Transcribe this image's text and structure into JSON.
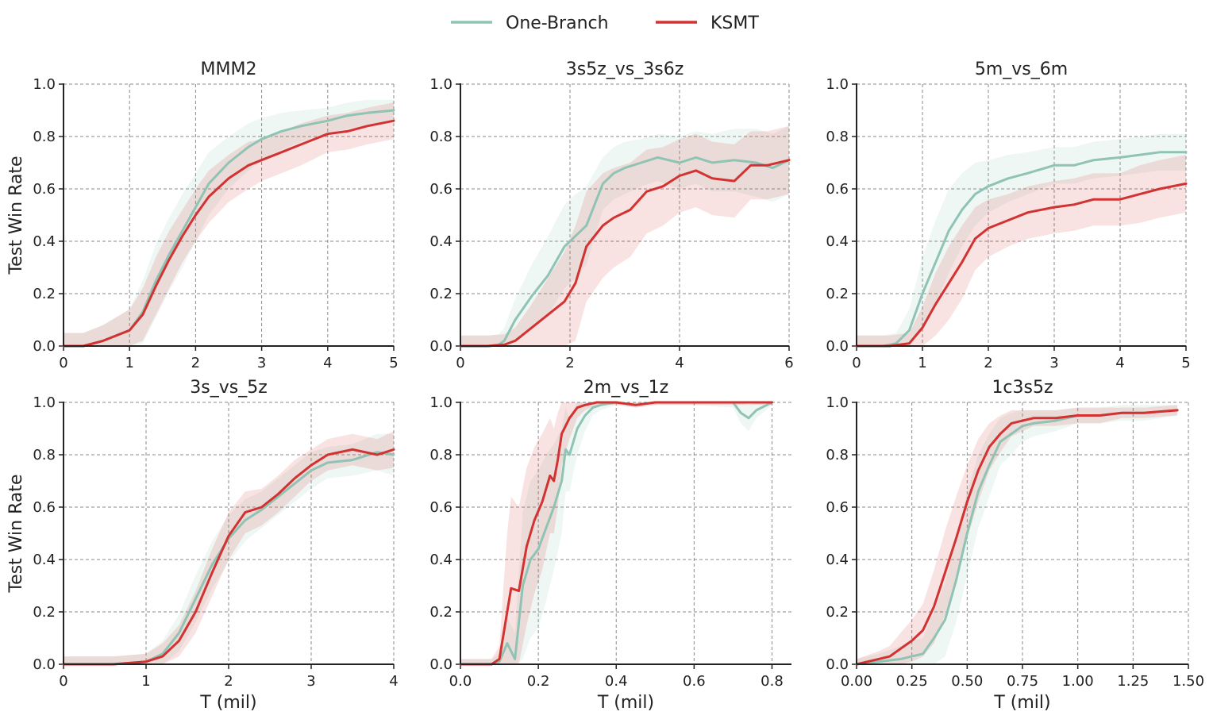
{
  "legend": {
    "position": "top-center",
    "entries": [
      {
        "name": "One-Branch",
        "color": "#8fc3b4"
      },
      {
        "name": "KSMT",
        "color": "#d23232"
      }
    ]
  },
  "chart_data": [
    {
      "type": "line",
      "title": "MMM2",
      "xlabel": "",
      "ylabel": "Test Win Rate",
      "xlim": [
        0,
        5
      ],
      "ylim": [
        0,
        1
      ],
      "xticks": [
        "0",
        "1",
        "2",
        "3",
        "4",
        "5"
      ],
      "yticks": [
        "0.0",
        "0.2",
        "0.4",
        "0.6",
        "0.8",
        "1.0"
      ],
      "series": [
        {
          "name": "One-Branch",
          "x": [
            0,
            0.3,
            0.6,
            1.0,
            1.2,
            1.4,
            1.6,
            1.8,
            2.0,
            2.2,
            2.5,
            2.8,
            3.0,
            3.3,
            3.6,
            4.0,
            4.3,
            4.6,
            5.0
          ],
          "y": [
            0,
            0,
            0.02,
            0.06,
            0.13,
            0.25,
            0.35,
            0.44,
            0.53,
            0.62,
            0.7,
            0.76,
            0.79,
            0.82,
            0.84,
            0.86,
            0.88,
            0.89,
            0.9
          ],
          "band": [
            0.05,
            0.05,
            0.06,
            0.08,
            0.12,
            0.14,
            0.14,
            0.14,
            0.13,
            0.12,
            0.1,
            0.09,
            0.08,
            0.07,
            0.06,
            0.05,
            0.05,
            0.05,
            0.04
          ]
        },
        {
          "name": "KSMT",
          "x": [
            0,
            0.3,
            0.6,
            1.0,
            1.2,
            1.4,
            1.6,
            1.8,
            2.0,
            2.2,
            2.5,
            2.8,
            3.0,
            3.3,
            3.6,
            4.0,
            4.3,
            4.6,
            5.0
          ],
          "y": [
            0,
            0,
            0.02,
            0.06,
            0.12,
            0.23,
            0.33,
            0.42,
            0.5,
            0.57,
            0.64,
            0.69,
            0.71,
            0.74,
            0.77,
            0.81,
            0.82,
            0.84,
            0.86
          ],
          "band": [
            0.05,
            0.05,
            0.06,
            0.08,
            0.1,
            0.11,
            0.11,
            0.1,
            0.1,
            0.1,
            0.09,
            0.09,
            0.08,
            0.08,
            0.08,
            0.07,
            0.07,
            0.07,
            0.07
          ]
        }
      ]
    },
    {
      "type": "line",
      "title": "3s5z_vs_3s6z",
      "xlabel": "",
      "ylabel": "",
      "xlim": [
        0,
        6
      ],
      "ylim": [
        0,
        1
      ],
      "xticks": [
        "0",
        "2",
        "4",
        "6"
      ],
      "yticks": [
        "0.0",
        "0.2",
        "0.4",
        "0.6",
        "0.8",
        "1.0"
      ],
      "series": [
        {
          "name": "One-Branch",
          "x": [
            0,
            0.5,
            0.7,
            0.8,
            1.0,
            1.3,
            1.6,
            1.9,
            2.1,
            2.3,
            2.6,
            2.8,
            3.0,
            3.3,
            3.6,
            4.0,
            4.3,
            4.6,
            5.0,
            5.4,
            5.7,
            6.0
          ],
          "y": [
            0,
            0,
            0.005,
            0.02,
            0.1,
            0.19,
            0.27,
            0.38,
            0.42,
            0.46,
            0.62,
            0.66,
            0.68,
            0.7,
            0.72,
            0.7,
            0.72,
            0.7,
            0.71,
            0.7,
            0.68,
            0.71
          ],
          "band": [
            0.04,
            0.04,
            0.04,
            0.05,
            0.08,
            0.12,
            0.15,
            0.16,
            0.16,
            0.15,
            0.1,
            0.1,
            0.1,
            0.09,
            0.09,
            0.1,
            0.1,
            0.11,
            0.12,
            0.13,
            0.13,
            0.13
          ]
        },
        {
          "name": "KSMT",
          "x": [
            0,
            0.5,
            0.8,
            1.0,
            1.3,
            1.6,
            1.9,
            2.1,
            2.3,
            2.6,
            2.8,
            3.1,
            3.4,
            3.7,
            4.0,
            4.3,
            4.6,
            5.0,
            5.3,
            5.6,
            6.0
          ],
          "y": [
            0,
            0,
            0.005,
            0.02,
            0.07,
            0.12,
            0.17,
            0.24,
            0.38,
            0.46,
            0.49,
            0.52,
            0.59,
            0.61,
            0.65,
            0.67,
            0.64,
            0.63,
            0.69,
            0.69,
            0.71
          ],
          "band": [
            0.04,
            0.04,
            0.04,
            0.05,
            0.09,
            0.14,
            0.19,
            0.22,
            0.21,
            0.2,
            0.19,
            0.18,
            0.16,
            0.15,
            0.14,
            0.14,
            0.14,
            0.14,
            0.13,
            0.13,
            0.13
          ]
        }
      ]
    },
    {
      "type": "line",
      "title": "5m_vs_6m",
      "xlabel": "",
      "ylabel": "",
      "xlim": [
        0,
        5
      ],
      "ylim": [
        0,
        1
      ],
      "xticks": [
        "0",
        "1",
        "2",
        "3",
        "4",
        "5"
      ],
      "yticks": [
        "0.0",
        "0.2",
        "0.4",
        "0.6",
        "0.8",
        "1.0"
      ],
      "series": [
        {
          "name": "One-Branch",
          "x": [
            0,
            0.4,
            0.6,
            0.8,
            1.0,
            1.2,
            1.4,
            1.6,
            1.8,
            2.0,
            2.3,
            2.6,
            3.0,
            3.3,
            3.6,
            4.0,
            4.3,
            4.6,
            5.0
          ],
          "y": [
            0,
            0,
            0.01,
            0.06,
            0.2,
            0.32,
            0.44,
            0.52,
            0.58,
            0.61,
            0.64,
            0.66,
            0.69,
            0.69,
            0.71,
            0.72,
            0.73,
            0.74,
            0.74
          ],
          "band": [
            0.04,
            0.04,
            0.04,
            0.08,
            0.14,
            0.16,
            0.16,
            0.14,
            0.12,
            0.1,
            0.09,
            0.08,
            0.07,
            0.07,
            0.07,
            0.07,
            0.07,
            0.07,
            0.07
          ]
        },
        {
          "name": "KSMT",
          "x": [
            0,
            0.5,
            0.8,
            1.0,
            1.2,
            1.4,
            1.6,
            1.8,
            2.0,
            2.3,
            2.6,
            3.0,
            3.3,
            3.6,
            4.0,
            4.3,
            4.6,
            5.0
          ],
          "y": [
            0,
            0,
            0.01,
            0.07,
            0.16,
            0.24,
            0.32,
            0.41,
            0.45,
            0.48,
            0.51,
            0.53,
            0.54,
            0.56,
            0.56,
            0.58,
            0.6,
            0.62
          ],
          "band": [
            0.04,
            0.04,
            0.04,
            0.08,
            0.12,
            0.14,
            0.14,
            0.12,
            0.11,
            0.1,
            0.1,
            0.1,
            0.1,
            0.1,
            0.1,
            0.11,
            0.11,
            0.11
          ]
        }
      ]
    },
    {
      "type": "line",
      "title": "3s_vs_5z",
      "xlabel": "T (mil)",
      "ylabel": "Test Win Rate",
      "xlim": [
        0,
        4
      ],
      "ylim": [
        0,
        1
      ],
      "xticks": [
        "0",
        "1",
        "2",
        "3",
        "4"
      ],
      "yticks": [
        "0.0",
        "0.2",
        "0.4",
        "0.6",
        "0.8",
        "1.0"
      ],
      "series": [
        {
          "name": "One-Branch",
          "x": [
            0,
            0.6,
            1.0,
            1.2,
            1.4,
            1.6,
            1.8,
            2.0,
            2.2,
            2.4,
            2.6,
            2.8,
            3.0,
            3.2,
            3.5,
            3.8,
            4.0
          ],
          "y": [
            0,
            0,
            0.01,
            0.04,
            0.12,
            0.25,
            0.38,
            0.48,
            0.55,
            0.59,
            0.64,
            0.69,
            0.74,
            0.77,
            0.78,
            0.81,
            0.8
          ],
          "band": [
            0.03,
            0.03,
            0.03,
            0.05,
            0.07,
            0.09,
            0.09,
            0.09,
            0.08,
            0.07,
            0.07,
            0.07,
            0.07,
            0.06,
            0.06,
            0.07,
            0.08
          ]
        },
        {
          "name": "KSMT",
          "x": [
            0,
            0.6,
            1.0,
            1.2,
            1.4,
            1.6,
            1.8,
            2.0,
            2.2,
            2.4,
            2.6,
            2.8,
            3.0,
            3.2,
            3.5,
            3.8,
            4.0
          ],
          "y": [
            0,
            0,
            0.01,
            0.03,
            0.09,
            0.2,
            0.35,
            0.49,
            0.58,
            0.6,
            0.65,
            0.71,
            0.76,
            0.8,
            0.82,
            0.8,
            0.82
          ],
          "band": [
            0.03,
            0.03,
            0.03,
            0.05,
            0.06,
            0.08,
            0.09,
            0.09,
            0.08,
            0.07,
            0.07,
            0.07,
            0.06,
            0.06,
            0.06,
            0.06,
            0.07
          ]
        }
      ]
    },
    {
      "type": "line",
      "title": "2m_vs_1z",
      "xlabel": "T (mil)",
      "ylabel": "",
      "xlim": [
        0,
        0.85
      ],
      "ylim": [
        0,
        1
      ],
      "xticks": [
        "0.0",
        "0.2",
        "0.4",
        "0.6",
        "0.8"
      ],
      "yticks": [
        "0.0",
        "0.2",
        "0.4",
        "0.6",
        "0.8",
        "1.0"
      ],
      "series": [
        {
          "name": "One-Branch",
          "x": [
            0,
            0.08,
            0.1,
            0.12,
            0.14,
            0.16,
            0.18,
            0.2,
            0.22,
            0.24,
            0.26,
            0.27,
            0.28,
            0.3,
            0.32,
            0.34,
            0.36,
            0.4,
            0.45,
            0.5,
            0.6,
            0.7,
            0.72,
            0.74,
            0.76,
            0.8
          ],
          "y": [
            0,
            0,
            0.01,
            0.08,
            0.02,
            0.3,
            0.4,
            0.44,
            0.52,
            0.6,
            0.7,
            0.82,
            0.8,
            0.9,
            0.95,
            0.98,
            0.99,
            1.0,
            0.99,
            1.0,
            1.0,
            1.0,
            0.96,
            0.94,
            0.97,
            1.0
          ],
          "band": [
            0.02,
            0.02,
            0.03,
            0.1,
            0.1,
            0.28,
            0.3,
            0.3,
            0.28,
            0.24,
            0.2,
            0.16,
            0.14,
            0.1,
            0.06,
            0.03,
            0.02,
            0.01,
            0.01,
            0.01,
            0.01,
            0.02,
            0.04,
            0.05,
            0.03,
            0.01
          ]
        },
        {
          "name": "KSMT",
          "x": [
            0,
            0.08,
            0.1,
            0.12,
            0.13,
            0.15,
            0.17,
            0.19,
            0.21,
            0.23,
            0.24,
            0.25,
            0.26,
            0.28,
            0.3,
            0.32,
            0.35,
            0.4,
            0.45,
            0.5,
            0.6,
            0.7,
            0.8
          ],
          "y": [
            0,
            0,
            0.02,
            0.2,
            0.29,
            0.28,
            0.45,
            0.55,
            0.62,
            0.72,
            0.7,
            0.78,
            0.88,
            0.94,
            0.98,
            0.99,
            1.0,
            1.0,
            0.99,
            1.0,
            1.0,
            1.0,
            1.0
          ],
          "band": [
            0.02,
            0.02,
            0.05,
            0.3,
            0.35,
            0.32,
            0.3,
            0.28,
            0.26,
            0.22,
            0.2,
            0.18,
            0.12,
            0.08,
            0.04,
            0.02,
            0.01,
            0.01,
            0.01,
            0.01,
            0.01,
            0.01,
            0.01
          ]
        }
      ]
    },
    {
      "type": "line",
      "title": "1c3s5z",
      "xlabel": "T (mil)",
      "ylabel": "",
      "xlim": [
        0,
        1.5
      ],
      "ylim": [
        0,
        1
      ],
      "xticks": [
        "0.00",
        "0.25",
        "0.50",
        "0.75",
        "1.00",
        "1.25",
        "1.50"
      ],
      "yticks": [
        "0.0",
        "0.2",
        "0.4",
        "0.6",
        "0.8",
        "1.0"
      ],
      "series": [
        {
          "name": "One-Branch",
          "x": [
            0,
            0.1,
            0.2,
            0.25,
            0.3,
            0.35,
            0.4,
            0.45,
            0.5,
            0.55,
            0.6,
            0.65,
            0.7,
            0.75,
            0.8,
            0.9,
            1.0,
            1.1,
            1.2,
            1.3,
            1.45
          ],
          "y": [
            0,
            0.01,
            0.02,
            0.03,
            0.04,
            0.1,
            0.17,
            0.32,
            0.5,
            0.66,
            0.76,
            0.85,
            0.88,
            0.91,
            0.92,
            0.93,
            0.95,
            0.95,
            0.96,
            0.96,
            0.97
          ],
          "band": [
            0.02,
            0.03,
            0.05,
            0.06,
            0.06,
            0.1,
            0.14,
            0.16,
            0.16,
            0.14,
            0.12,
            0.09,
            0.08,
            0.06,
            0.05,
            0.04,
            0.03,
            0.03,
            0.03,
            0.03,
            0.02
          ]
        },
        {
          "name": "KSMT",
          "x": [
            0,
            0.1,
            0.15,
            0.2,
            0.25,
            0.3,
            0.35,
            0.4,
            0.45,
            0.5,
            0.55,
            0.6,
            0.65,
            0.7,
            0.75,
            0.8,
            0.9,
            1.0,
            1.1,
            1.2,
            1.3,
            1.45
          ],
          "y": [
            0,
            0.02,
            0.03,
            0.06,
            0.09,
            0.13,
            0.22,
            0.35,
            0.48,
            0.62,
            0.74,
            0.83,
            0.88,
            0.92,
            0.93,
            0.94,
            0.94,
            0.95,
            0.95,
            0.96,
            0.96,
            0.97
          ],
          "band": [
            0.02,
            0.03,
            0.04,
            0.06,
            0.08,
            0.1,
            0.14,
            0.16,
            0.16,
            0.14,
            0.12,
            0.09,
            0.07,
            0.05,
            0.04,
            0.03,
            0.03,
            0.03,
            0.03,
            0.02,
            0.02,
            0.02
          ]
        }
      ]
    }
  ]
}
